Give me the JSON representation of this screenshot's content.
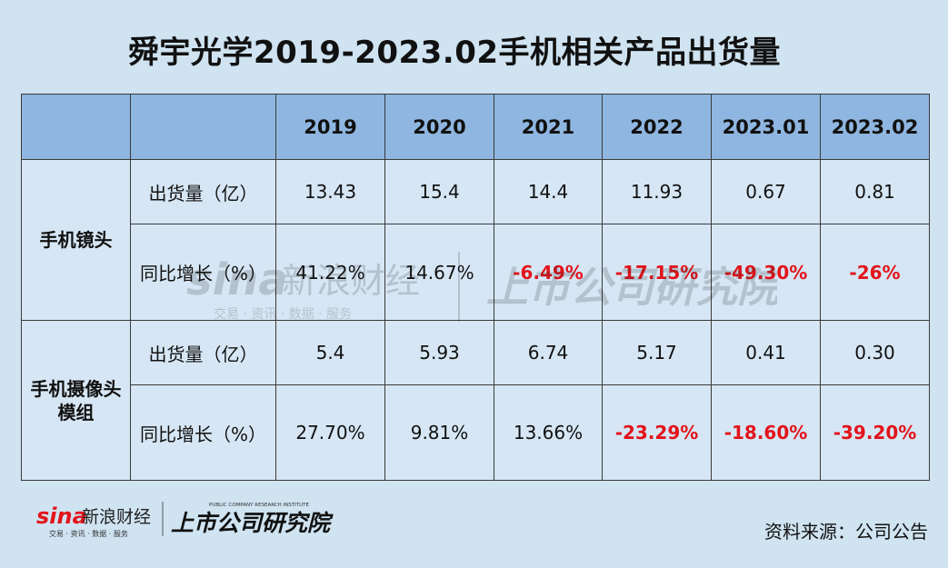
{
  "title": "舜宇光学2019-2023.02手机相关产品出货量",
  "chart_data": {
    "type": "table",
    "columns": [
      "2019",
      "2020",
      "2021",
      "2022",
      "2023.01",
      "2023.02"
    ],
    "groups": [
      {
        "name": "手机镜头",
        "rows": [
          {
            "label": "出货量（亿）",
            "values": [
              "13.43",
              "15.4",
              "14.4",
              "11.93",
              "0.67",
              "0.81"
            ]
          },
          {
            "label": "同比增长（%）",
            "values": [
              "41.22%",
              "14.67%",
              "-6.49%",
              "-17.15%",
              "-49.30%",
              "-26%"
            ]
          }
        ]
      },
      {
        "name": "手机摄像头模组",
        "rows": [
          {
            "label": "出货量（亿）",
            "values": [
              "5.4",
              "5.93",
              "6.74",
              "5.17",
              "0.41",
              "0.30"
            ]
          },
          {
            "label": "同比增长（%）",
            "values": [
              "27.70%",
              "9.81%",
              "13.66%",
              "-23.29%",
              "-18.60%",
              "-39.20%"
            ]
          }
        ]
      }
    ]
  },
  "colors": {
    "negative": "#e3141b",
    "header_bg": "#8fb6e0",
    "cell_bg": "#d6e6f4",
    "page_bg": "#cfe3f1"
  },
  "watermark": {
    "sina_logo": "sina",
    "sina_name": "新浪财经",
    "sina_tagline": "交易 · 资讯 · 数据 · 服务",
    "institute_cn": "上市公司研究院",
    "institute_en": "PUBLIC COMPANY RESEARCH INSTITUTE"
  },
  "source": "资料来源：公司公告"
}
